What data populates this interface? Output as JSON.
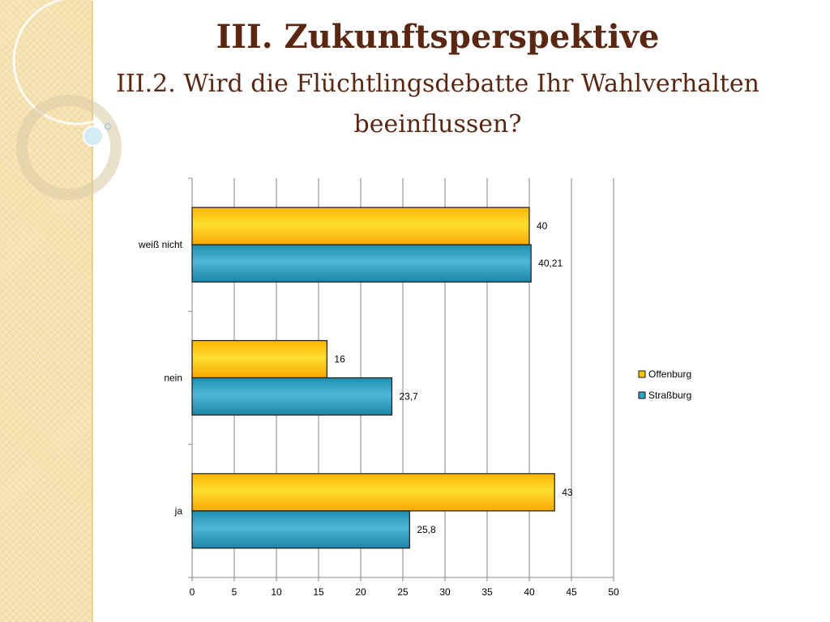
{
  "slide": {
    "title": "III. Zukunftsperspektive",
    "subtitle_line1": "III.2. Wird die Flüchtlingsdebatte Ihr Wahlverhalten",
    "subtitle_line2": "beeinflussen?"
  },
  "colors": {
    "offenburg": "#fcc400",
    "strassburg": "#2e9fbf",
    "title": "#5a2713",
    "strip": "#f6e2b0"
  },
  "chart_data": {
    "type": "bar",
    "orientation": "horizontal",
    "categories": [
      "weiß nicht",
      "nein",
      "ja"
    ],
    "series": [
      {
        "name": "Offenburg",
        "values": [
          40,
          16,
          43
        ],
        "labels": [
          "40",
          "16",
          "43"
        ]
      },
      {
        "name": "Straßburg",
        "values": [
          40.21,
          23.7,
          25.8
        ],
        "labels": [
          "40,21",
          "23,7",
          "25,8"
        ]
      }
    ],
    "xlim": [
      0,
      50
    ],
    "xticks": [
      0,
      5,
      10,
      15,
      20,
      25,
      30,
      35,
      40,
      45,
      50
    ],
    "grid": true,
    "legend_position": "right"
  }
}
